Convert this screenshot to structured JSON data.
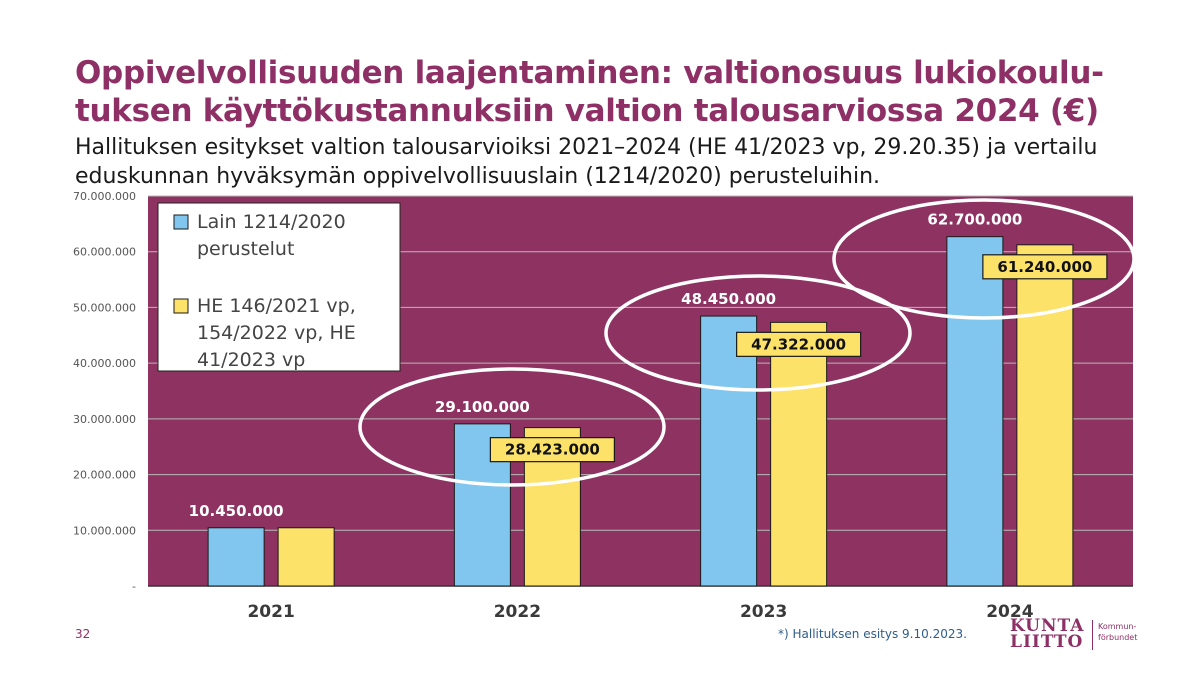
{
  "slide": {
    "title": "Oppivelvollisuuden laajentaminen: valtionosuus lukiokoulu-tuksen käyttökustannuksiin valtion talousarviossa 2024 (€)",
    "subtitle": "Hallituksen esitykset valtion talousarvioiksi 2021–2024 (HE 41/2023 vp, 29.20.35) ja vertailu eduskunnan hyväksymän oppivelvollisuuslain (1214/2020) perusteluihin.",
    "footnote": "*)  Hallituksen esitys 9.10.2023.",
    "page_number": "32",
    "logo": {
      "line1": "KUNTA",
      "line2": "LIITTO",
      "side1": "Kommun-",
      "side2": "förbundet"
    }
  },
  "colors": {
    "plot_bg": "#8e3262",
    "series1": "#80c6ee",
    "series2": "#fde26a",
    "title": "#8e2f66",
    "ellipse": "#ffffff"
  },
  "chart_data": {
    "type": "bar",
    "categories": [
      "2021",
      "2022",
      "2023",
      "2024"
    ],
    "series": [
      {
        "name": "Lain 1214/2020 perustelut",
        "values": [
          10450000,
          29100000,
          48450000,
          62700000
        ]
      },
      {
        "name": "HE 146/2021 vp, 154/2022 vp, HE 41/2023 vp",
        "values": [
          10450000,
          28423000,
          47322000,
          61240000
        ]
      }
    ],
    "ylim": [
      0,
      70000000
    ],
    "yticks": [
      0,
      10000000,
      20000000,
      30000000,
      40000000,
      50000000,
      60000000,
      70000000
    ],
    "ytick_labels": [
      "-",
      "10.000.000",
      "20.000.000",
      "30.000.000",
      "40.000.000",
      "50.000.000",
      "60.000.000",
      "70.000.000"
    ],
    "data_labels": [
      [
        "10.450.000",
        "29.100.000",
        "48.450.000",
        "62.700.000"
      ],
      [
        "",
        "28.423.000",
        "47.322.000",
        "61.240.000"
      ]
    ],
    "legend_lines": [
      [
        "Lain 1214/2020",
        "perustelut"
      ],
      [
        "HE 146/2021 vp,",
        "154/2022 vp, HE",
        "41/2023 vp"
      ]
    ],
    "highlighted_categories": [
      "2022",
      "2023",
      "2024"
    ],
    "grid": true,
    "legend_position": "top-left"
  }
}
